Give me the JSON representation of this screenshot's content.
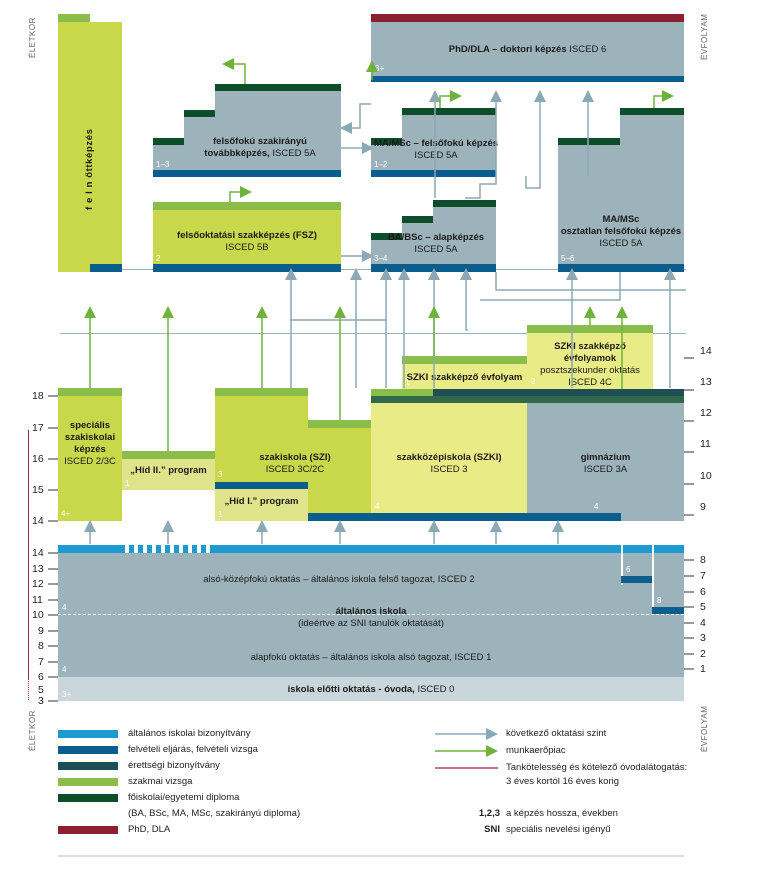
{
  "side_labels": {
    "left": "ÉLETKOR",
    "right": "ÉVFOLYAM"
  },
  "colors": {
    "gray": "#9db3bc",
    "lightgray": "#c9d6db",
    "lime": "#c8d84a",
    "lime_soft": "#dfe48a",
    "green": "#8bbd4a",
    "yellow": "#e9ec86",
    "blue": "#0a5d8c",
    "cyan": "#1d9ad0",
    "darkgreen": "#0d4d2a",
    "maroon": "#8b2030",
    "arrow": "#8aa9b4"
  },
  "boxes": {
    "phd": {
      "title": "PhD/DLA – doktori képzés",
      "isced": "ISCED 6",
      "len": "3+"
    },
    "felnott": {
      "title": "f e l n őttképzés"
    },
    "fsz5a": {
      "line1": "felsőfokú szakirányú",
      "line2": "továbbképzés,",
      "isced": "ISCED 5A",
      "len": "1–3"
    },
    "ma": {
      "title": "MA/MSc – felsőfokú képzés",
      "isced": "ISCED 5A",
      "len": "1–2"
    },
    "fsz": {
      "title": "felsőoktatási szakképzés (FSZ)",
      "isced": "ISCED 5B",
      "len": "2"
    },
    "ba": {
      "title": "BA/BSc – alapképzés",
      "isced": "ISCED 5A",
      "len": "3–4"
    },
    "osztatlan": {
      "line1": "MA/MSc",
      "line2": "osztatlan felsőfokú képzés",
      "isced": "ISCED 5A",
      "len": "5–6"
    },
    "szki_ev": {
      "title": "SZKI szakképző évfolyam",
      "len": "1"
    },
    "szki_post": {
      "line1": "SZKI szakképző évfolyamok",
      "line2": "posztszekunder oktatás",
      "isced": "ISCED 4C",
      "len": "2"
    },
    "specialis": {
      "line1": "speciális",
      "line2": "szakiskolai",
      "line3": "képzés",
      "isced": "ISCED 2/3C",
      "len": "4+"
    },
    "hid2": {
      "title": "„Híd II.” program",
      "len": "1"
    },
    "szi": {
      "title": "szakiskola (SZI)",
      "isced": "ISCED 3C/2C",
      "len": "3"
    },
    "hid1": {
      "title": "„Híd I.” program",
      "len": "1"
    },
    "szkozep": {
      "title": "szakközépiskola (SZKI)",
      "isced": "ISCED 3",
      "len": "4"
    },
    "gimn": {
      "title": "gimnázium",
      "isced": "ISCED 3A",
      "len": "4"
    },
    "alsokozep": {
      "title": "alsó-középfokú oktatás – általános iskola felső tagozat,",
      "isced": "ISCED 2",
      "len": "4"
    },
    "altalanos": {
      "title": "általános iskola",
      "sub": "(ideértve az SNI tanulók oktatását)"
    },
    "alapfoku": {
      "title": "alapfokú oktatás – általános iskola alsó tagozat,",
      "isced": "ISCED 1",
      "len": "4"
    },
    "ovoda": {
      "title": "iskola előtti oktatás - óvoda,",
      "isced": "ISCED 0",
      "len": "3+"
    },
    "gym6": {
      "len": "6"
    },
    "gym8": {
      "len": "8"
    }
  },
  "age_upper": [
    "18",
    "17",
    "16",
    "15",
    "14"
  ],
  "age_lower": [
    "14",
    "13",
    "12",
    "11",
    "10",
    "9",
    "8",
    "7",
    "6",
    "5",
    "3"
  ],
  "grade_upper": [
    "14",
    "13",
    "12",
    "11",
    "10",
    "9"
  ],
  "grade_lower": [
    "8",
    "7",
    "6",
    "5",
    "4",
    "3",
    "2",
    "1"
  ],
  "legend": {
    "left": [
      {
        "color": "#1d9ad0",
        "label": "általános iskolai bizonyítvány"
      },
      {
        "color": "#0a5d8c",
        "label": "felvételi eljárás, felvételi vizsga"
      },
      {
        "color": "#1e4f55",
        "label": "érettségi bizonyítvány"
      },
      {
        "color": "#8bbd4a",
        "label": "szakmai vizsga"
      },
      {
        "color": "#0d4d2a",
        "label": "főiskolai/egyetemi diploma"
      },
      {
        "color": "",
        "label": "(BA, BSc, MA, MSc, szakirányú diploma)"
      },
      {
        "color": "#8b2030",
        "label": "PhD, DLA"
      }
    ],
    "right": [
      {
        "label": "következő oktatási szint"
      },
      {
        "label": "munkaerőpiac"
      },
      {
        "label": "Tankötelesség és kötelező óvodalátogatás:"
      },
      {
        "label": "3 éves kortól 16 éves korig"
      },
      {
        "key": "1,2,3",
        "label": "a képzés hossza, években"
      },
      {
        "key": "SNI",
        "label": "speciális nevelési igényű"
      }
    ]
  }
}
